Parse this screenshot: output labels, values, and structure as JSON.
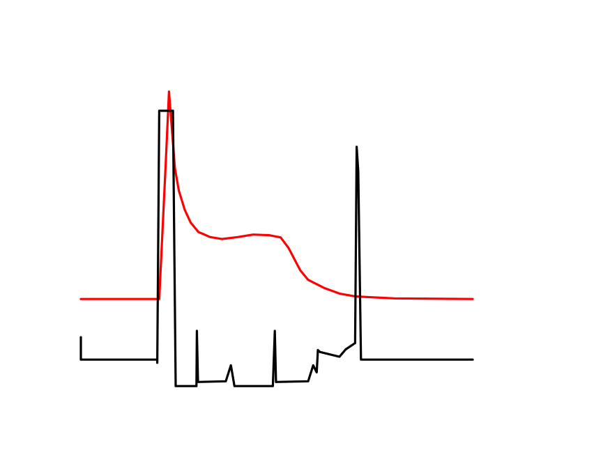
{
  "chart_data": {
    "type": "line",
    "title": "",
    "xlabel": "",
    "ylabel": "",
    "grid": false,
    "legend": "none",
    "axes_visible": false,
    "xlim": [
      0,
      100
    ],
    "ylim": [
      0,
      100
    ],
    "series": [
      {
        "name": "red-trace",
        "color": "#ff0000",
        "points": [
          [
            0,
            29
          ],
          [
            20,
            29
          ],
          [
            21.6,
            70
          ],
          [
            22.5,
            94
          ],
          [
            24,
            70
          ],
          [
            25,
            63
          ],
          [
            26.5,
            57
          ],
          [
            28,
            53
          ],
          [
            30,
            50
          ],
          [
            33,
            48.4
          ],
          [
            36,
            47.8
          ],
          [
            40,
            48.4
          ],
          [
            44,
            49.2
          ],
          [
            48,
            49
          ],
          [
            51,
            48.3
          ],
          [
            53,
            45
          ],
          [
            56,
            38
          ],
          [
            58,
            35
          ],
          [
            62,
            32.5
          ],
          [
            66,
            30.7
          ],
          [
            70,
            29.8
          ],
          [
            80,
            29.2
          ],
          [
            100,
            29
          ]
        ]
      },
      {
        "name": "black-trace",
        "color": "#000000",
        "points": [
          [
            0,
            17
          ],
          [
            0,
            10
          ],
          [
            19.5,
            10
          ],
          [
            19.5,
            9
          ],
          [
            20,
            88
          ],
          [
            23.5,
            88
          ],
          [
            24.2,
            1.7
          ],
          [
            29.5,
            1.7
          ],
          [
            29.6,
            19
          ],
          [
            29.9,
            3
          ],
          [
            37,
            3.2
          ],
          [
            38.3,
            8.2
          ],
          [
            39.2,
            1.7
          ],
          [
            49,
            1.7
          ],
          [
            49.5,
            19
          ],
          [
            49.8,
            3
          ],
          [
            58,
            3.2
          ],
          [
            59.3,
            8.2
          ],
          [
            60.2,
            6
          ],
          [
            60.5,
            13
          ],
          [
            61,
            12.4
          ],
          [
            66,
            10.9
          ],
          [
            67.6,
            13.2
          ],
          [
            70,
            15.2
          ],
          [
            70.4,
            76.7
          ],
          [
            70.8,
            69
          ],
          [
            71.5,
            10
          ],
          [
            100,
            10
          ]
        ]
      }
    ]
  }
}
